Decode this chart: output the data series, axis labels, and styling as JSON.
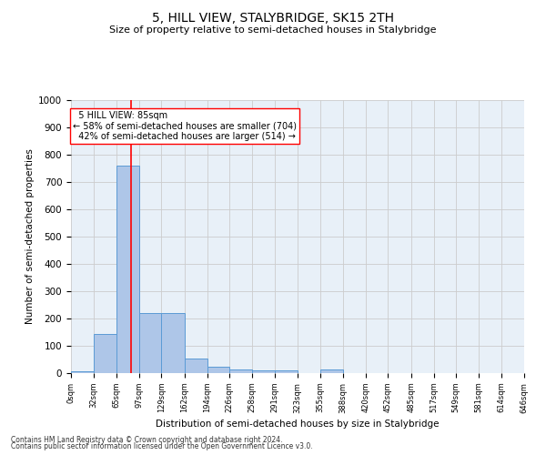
{
  "title_line1": "5, HILL VIEW, STALYBRIDGE, SK15 2TH",
  "title_line2": "Size of property relative to semi-detached houses in Stalybridge",
  "xlabel": "Distribution of semi-detached houses by size in Stalybridge",
  "ylabel": "Number of semi-detached properties",
  "footnote1": "Contains HM Land Registry data © Crown copyright and database right 2024.",
  "footnote2": "Contains public sector information licensed under the Open Government Licence v3.0.",
  "bin_edges": [
    0,
    32,
    65,
    97,
    129,
    162,
    194,
    226,
    258,
    291,
    323,
    355,
    388,
    420,
    452,
    485,
    517,
    549,
    581,
    614,
    646
  ],
  "bar_heights": [
    8,
    145,
    760,
    220,
    220,
    55,
    25,
    12,
    10,
    10,
    0,
    12,
    0,
    0,
    0,
    0,
    0,
    0,
    0,
    0
  ],
  "bar_color": "#aec6e8",
  "bar_edge_color": "#5b9bd5",
  "subject_size": 85,
  "subject_label": "5 HILL VIEW: 85sqm",
  "pct_smaller": 58,
  "count_smaller": 704,
  "pct_larger": 42,
  "count_larger": 514,
  "vline_color": "red",
  "annotation_box_color": "white",
  "annotation_box_edge_color": "red",
  "ylim": [
    0,
    1000
  ],
  "yticks": [
    0,
    100,
    200,
    300,
    400,
    500,
    600,
    700,
    800,
    900,
    1000
  ],
  "grid_color": "#cccccc",
  "bg_color": "#e8f0f8",
  "fig_bg_color": "#ffffff"
}
